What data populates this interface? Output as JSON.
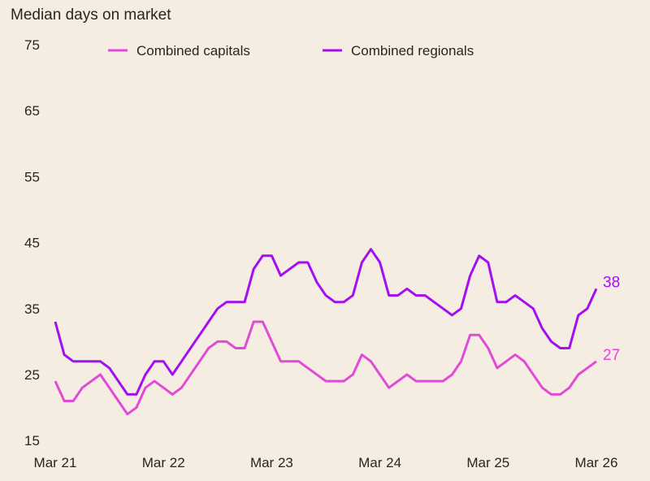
{
  "chart_data": {
    "type": "line",
    "title": "Median days on market",
    "xlabel": "",
    "ylabel": "",
    "ylim": [
      15,
      75
    ],
    "yticks": [
      15,
      25,
      35,
      45,
      55,
      65,
      75
    ],
    "xtick_labels": [
      "Mar 21",
      "Mar 22",
      "Mar 23",
      "Mar 24",
      "Mar 25",
      "Mar 26"
    ],
    "x_frequency": "monthly, Mar 2021 to Mar 2026",
    "grid": false,
    "legend_placement": "top",
    "series": [
      {
        "name": "Combined capitals",
        "color": "#e04ad6",
        "end_label": "27",
        "values": [
          24,
          21,
          21,
          23,
          24,
          25,
          23,
          21,
          19,
          20,
          23,
          24,
          23,
          22,
          23,
          25,
          27,
          29,
          30,
          30,
          29,
          29,
          33,
          33,
          30,
          27,
          27,
          27,
          26,
          25,
          24,
          24,
          24,
          25,
          28,
          27,
          25,
          23,
          24,
          25,
          24,
          24,
          24,
          24,
          25,
          27,
          31,
          31,
          29,
          26,
          27,
          28,
          27,
          25,
          23,
          22,
          22,
          23,
          25,
          26,
          27
        ]
      },
      {
        "name": "Combined regionals",
        "color": "#a40ff2",
        "end_label": "38",
        "values": [
          33,
          28,
          27,
          27,
          27,
          27,
          26,
          24,
          22,
          22,
          25,
          27,
          27,
          25,
          27,
          29,
          31,
          33,
          35,
          36,
          36,
          36,
          41,
          43,
          43,
          40,
          41,
          42,
          42,
          39,
          37,
          36,
          36,
          37,
          42,
          44,
          42,
          37,
          37,
          38,
          37,
          37,
          36,
          35,
          34,
          35,
          40,
          43,
          42,
          36,
          36,
          37,
          36,
          35,
          32,
          30,
          29,
          29,
          34,
          35,
          38
        ]
      }
    ]
  }
}
